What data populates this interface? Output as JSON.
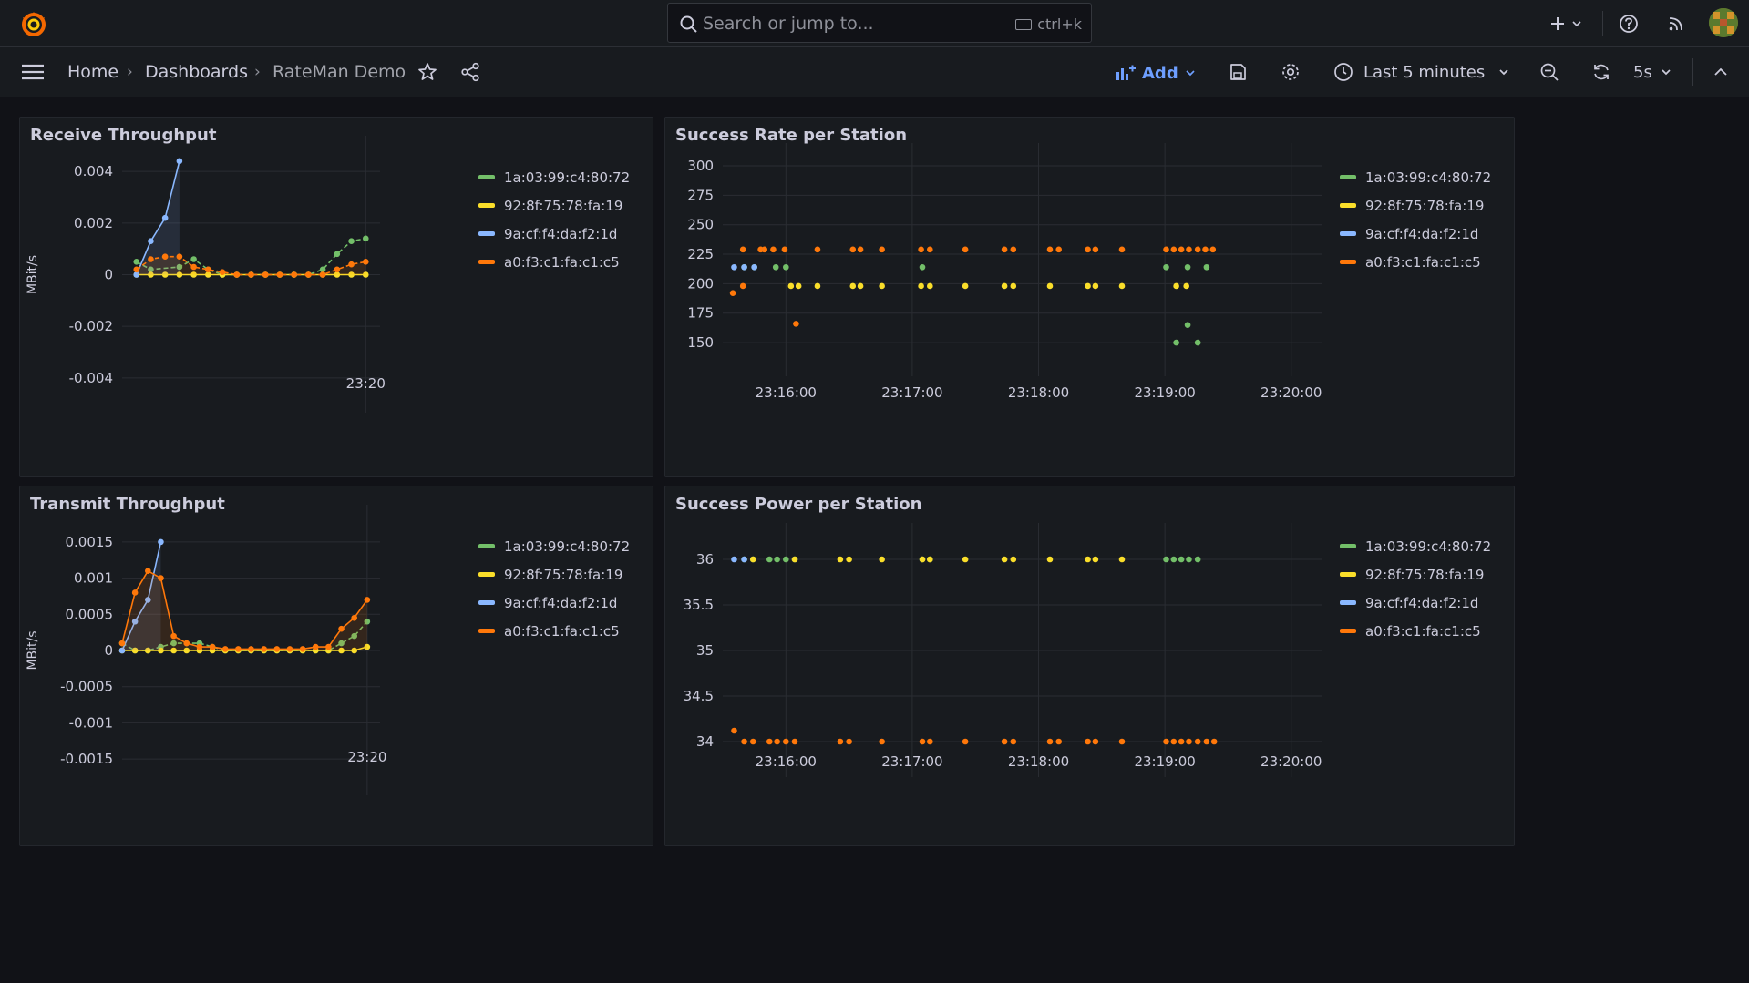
{
  "topbar": {
    "search_placeholder": "Search or jump to...",
    "search_shortcut": "ctrl+k"
  },
  "breadcrumb": {
    "home": "Home",
    "dashboards": "Dashboards",
    "current": "RateMan Demo"
  },
  "toolbar": {
    "add_label": "Add",
    "time_range": "Last 5 minutes",
    "refresh_interval": "5s"
  },
  "colors": {
    "green": "#73bf69",
    "yellow": "#fade2a",
    "blue": "#8ab8ff",
    "orange": "#ff780a",
    "accent": "#6e9fff"
  },
  "legend": [
    "1a:03:99:c4:80:72",
    "92:8f:75:78:fa:19",
    "9a:cf:f4:da:f2:1d",
    "a0:f3:c1:fa:c1:c5"
  ],
  "panels": {
    "rx": {
      "title": "Receive Throughput"
    },
    "rate": {
      "title": "Success Rate per Station"
    },
    "tx": {
      "title": "Transmit Throughput"
    },
    "power": {
      "title": "Success Power per Station"
    }
  },
  "chart_data": [
    {
      "id": "rx",
      "type": "line",
      "title": "Receive Throughput",
      "ylabel": "MBit/s",
      "ylim": [
        -0.0045,
        0.0045
      ],
      "yticks": [
        0.004,
        0.002,
        0,
        -0.002,
        -0.004
      ],
      "ytick_labels": [
        "0.004",
        "0.002",
        "0",
        "-0.002",
        "-0.004"
      ],
      "xlim": [
        -17,
        1
      ],
      "xticks": [
        0
      ],
      "xtick_labels": [
        "23:20"
      ],
      "series": [
        {
          "name": "1a:03:99:c4:80:72",
          "color": "#73bf69",
          "dashed": true,
          "x": [
            -16,
            -15,
            -13,
            -12,
            -11,
            -10,
            -9,
            -8,
            -7,
            -6,
            -5,
            -4,
            -3,
            -2,
            -1,
            0
          ],
          "y": [
            0.0005,
            0.0002,
            0.0003,
            0.0006,
            0.0002,
            0,
            0,
            0,
            0,
            0,
            0,
            0,
            0.0002,
            0.0008,
            0.0013,
            0.0014
          ]
        },
        {
          "name": "92:8f:75:78:fa:19",
          "color": "#fade2a",
          "dashed": false,
          "x": [
            -16,
            -15,
            -14,
            -13,
            -12,
            -11,
            -10,
            -9,
            -8,
            -7,
            -6,
            -5,
            -4,
            -3,
            -2,
            -1,
            0
          ],
          "y": [
            0,
            0,
            0,
            0,
            0,
            0,
            0,
            0,
            0,
            0,
            0,
            0,
            0,
            0,
            0,
            0,
            0
          ]
        },
        {
          "name": "9a:cf:f4:da:f2:1d",
          "color": "#8ab8ff",
          "dashed": false,
          "x": [
            -16,
            -15,
            -14,
            -13
          ],
          "y": [
            0,
            0.0013,
            0.0022,
            0.0044
          ]
        },
        {
          "name": "a0:f3:c1:fa:c1:c5",
          "color": "#ff780a",
          "dashed": true,
          "x": [
            -16,
            -15,
            -14,
            -13,
            -12,
            -11,
            -10,
            -9,
            -8,
            -7,
            -6,
            -5,
            -4,
            -3,
            -2,
            -1,
            0
          ],
          "y": [
            0.0002,
            0.0006,
            0.0007,
            0.0007,
            0.0003,
            0.0002,
            0.0001,
            0,
            0,
            0,
            0,
            0,
            0,
            0,
            0.0002,
            0.0004,
            0.0005
          ]
        }
      ]
    },
    {
      "id": "rate",
      "type": "scatter",
      "title": "Success Rate per Station",
      "ylim": [
        140,
        300
      ],
      "yticks": [
        300,
        275,
        250,
        225,
        200,
        175,
        150
      ],
      "ytick_labels": [
        "300",
        "275",
        "250",
        "225",
        "200",
        "175",
        "150"
      ],
      "xlim": [
        -4.5,
        0.24
      ],
      "xticks": [
        -4,
        -3,
        -2,
        -1,
        0
      ],
      "xtick_labels": [
        "23:16:00",
        "23:17:00",
        "23:18:00",
        "23:19:00",
        "23:20:00"
      ],
      "series": [
        {
          "name": "1a:03:99:c4:80:72",
          "color": "#73bf69",
          "x": [
            -4.33,
            -4.25,
            -4.08,
            -4.0,
            -2.92,
            -0.99,
            -0.91,
            -0.82,
            -0.82,
            -0.74,
            -0.67
          ],
          "y": [
            214,
            214,
            214,
            214,
            214,
            214,
            150,
            165,
            214,
            150,
            214
          ]
        },
        {
          "name": "92:8f:75:78:fa:19",
          "color": "#fade2a",
          "x": [
            -3.96,
            -3.9,
            -3.75,
            -3.47,
            -3.41,
            -3.24,
            -2.93,
            -2.86,
            -2.58,
            -2.27,
            -2.2,
            -1.91,
            -1.61,
            -1.55,
            -1.34,
            -0.91,
            -0.83
          ],
          "y": [
            198,
            198,
            198,
            198,
            198,
            198,
            198,
            198,
            198,
            198,
            198,
            198,
            198,
            198,
            198,
            198,
            198
          ]
        },
        {
          "name": "9a:cf:f4:da:f2:1d",
          "color": "#8ab8ff",
          "x": [
            -4.41,
            -4.33,
            -4.25
          ],
          "y": [
            214,
            214,
            214
          ]
        },
        {
          "name": "a0:f3:c1:fa:c1:c5",
          "color": "#ff780a",
          "x": [
            -4.42,
            -4.34,
            -4.2,
            -4.34,
            -4.17,
            -4.1,
            -4.01,
            -3.92,
            -3.75,
            -3.47,
            -3.41,
            -3.24,
            -2.93,
            -2.86,
            -2.58,
            -2.27,
            -2.2,
            -1.91,
            -1.84,
            -1.61,
            -1.55,
            -1.34,
            -0.99,
            -0.93,
            -0.87,
            -0.81,
            -0.74,
            -0.68,
            -0.62
          ],
          "y": [
            192,
            229,
            229,
            198,
            229,
            229,
            229,
            166,
            229,
            229,
            229,
            229,
            229,
            229,
            229,
            229,
            229,
            229,
            229,
            229,
            229,
            229,
            229,
            229,
            229,
            229,
            229,
            229,
            229
          ]
        }
      ]
    },
    {
      "id": "tx",
      "type": "line",
      "title": "Transmit Throughput",
      "ylabel": "MBit/s",
      "ylim": [
        -0.0017,
        0.0017
      ],
      "yticks": [
        0.0015,
        0.001,
        0.0005,
        0,
        -0.0005,
        -0.001,
        -0.0015
      ],
      "ytick_labels": [
        "0.0015",
        "0.001",
        "0.0005",
        "0",
        "-0.0005",
        "-0.001",
        "-0.0015"
      ],
      "xlim": [
        -19,
        1
      ],
      "xticks": [
        0
      ],
      "xtick_labels": [
        "23:20"
      ],
      "series": [
        {
          "name": "1a:03:99:c4:80:72",
          "color": "#73bf69",
          "dashed": true,
          "x": [
            -19,
            -18,
            -17,
            -16,
            -15,
            -14,
            -13,
            -12,
            -11,
            -10,
            -9,
            -8,
            -7,
            -6,
            -5,
            -4,
            -3,
            -2,
            -1,
            0
          ],
          "y": [
            0.0001,
            0,
            0,
            5e-05,
            0.0001,
            0.0001,
            0.0001,
            5e-05,
            0,
            0,
            0,
            0,
            0,
            0,
            0,
            0,
            0,
            0.0001,
            0.0002,
            0.0004
          ]
        },
        {
          "name": "92:8f:75:78:fa:19",
          "color": "#fade2a",
          "dashed": false,
          "x": [
            -19,
            -18,
            -17,
            -16,
            -15,
            -14,
            -13,
            -12,
            -11,
            -10,
            -9,
            -8,
            -7,
            -6,
            -5,
            -4,
            -3,
            -2,
            -1,
            0
          ],
          "y": [
            0,
            0,
            0,
            0,
            0,
            0,
            0,
            0,
            0,
            0,
            0,
            0,
            0,
            0,
            0,
            0,
            0,
            0,
            0,
            5e-05
          ]
        },
        {
          "name": "9a:cf:f4:da:f2:1d",
          "color": "#8ab8ff",
          "dashed": false,
          "x": [
            -19,
            -18,
            -17,
            -16
          ],
          "y": [
            0,
            0.0004,
            0.0007,
            0.0015
          ]
        },
        {
          "name": "a0:f3:c1:fa:c1:c5",
          "color": "#ff780a",
          "dashed": false,
          "x": [
            -19,
            -18,
            -17,
            -16,
            -15,
            -14,
            -13,
            -12,
            -11,
            -10,
            -9,
            -8,
            -7,
            -6,
            -5,
            -4,
            -3,
            -2,
            -1,
            0
          ],
          "y": [
            0.0001,
            0.0008,
            0.0011,
            0.001,
            0.0002,
            0.0001,
            5e-05,
            5e-05,
            2e-05,
            2e-05,
            2e-05,
            2e-05,
            2e-05,
            2e-05,
            2e-05,
            5e-05,
            5e-05,
            0.0003,
            0.00045,
            0.0007
          ]
        }
      ]
    },
    {
      "id": "power",
      "type": "scatter",
      "title": "Success Power per Station",
      "ylim": [
        33.85,
        36.15
      ],
      "yticks": [
        36,
        35.5,
        35,
        34.5,
        34
      ],
      "ytick_labels": [
        "36",
        "35.5",
        "35",
        "34.5",
        "34"
      ],
      "xlim": [
        -4.5,
        0.24
      ],
      "xticks": [
        -4,
        -3,
        -2,
        -1,
        0
      ],
      "xtick_labels": [
        "23:16:00",
        "23:17:00",
        "23:18:00",
        "23:19:00",
        "23:20:00"
      ],
      "series": [
        {
          "name": "1a:03:99:c4:80:72",
          "color": "#73bf69",
          "x": [
            -4.33,
            -4.26,
            -4.13,
            -4.07,
            -4.0,
            -3.93,
            -2.92,
            -2.86,
            -0.99,
            -0.93,
            -0.87,
            -0.81,
            -0.74
          ],
          "y": [
            36,
            36,
            36,
            36,
            36,
            36,
            36,
            36,
            36,
            36,
            36,
            36,
            36
          ]
        },
        {
          "name": "92:8f:75:78:fa:19",
          "color": "#fade2a",
          "x": [
            -4.26,
            -3.93,
            -3.57,
            -3.5,
            -3.24,
            -2.92,
            -2.86,
            -2.58,
            -2.27,
            -2.2,
            -1.91,
            -1.61,
            -1.55,
            -1.34
          ],
          "y": [
            36,
            36,
            36,
            36,
            36,
            36,
            36,
            36,
            36,
            36,
            36,
            36,
            36,
            36
          ]
        },
        {
          "name": "9a:cf:f4:da:f2:1d",
          "color": "#8ab8ff",
          "x": [
            -4.41,
            -4.33
          ],
          "y": [
            36,
            36
          ]
        },
        {
          "name": "a0:f3:c1:fa:c1:c5",
          "color": "#ff780a",
          "x": [
            -4.41,
            -4.33,
            -4.26,
            -4.13,
            -4.07,
            -4.0,
            -3.93,
            -3.57,
            -3.5,
            -3.24,
            -2.92,
            -2.86,
            -2.58,
            -2.27,
            -2.2,
            -1.91,
            -1.84,
            -1.61,
            -1.55,
            -1.34,
            -0.99,
            -0.93,
            -0.87,
            -0.81,
            -0.74,
            -0.67,
            -0.61
          ],
          "y": [
            34.12,
            34,
            34,
            34,
            34,
            34,
            34,
            34,
            34,
            34,
            34,
            34,
            34,
            34,
            34,
            34,
            34,
            34,
            34,
            34,
            34,
            34,
            34,
            34,
            34,
            34,
            34
          ]
        }
      ]
    }
  ]
}
